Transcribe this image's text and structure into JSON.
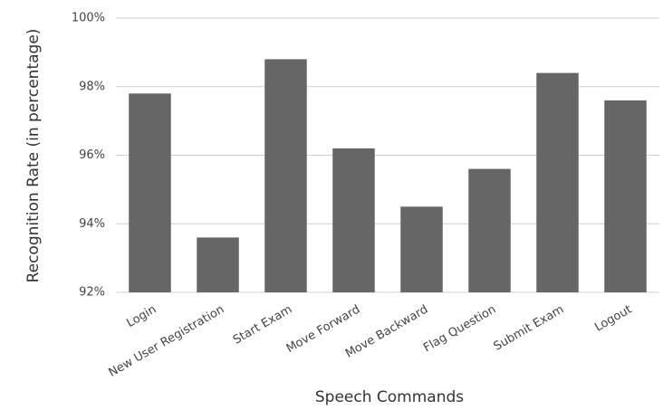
{
  "chart_data": {
    "type": "bar",
    "x_label": "Speech Commands",
    "y_label": "Recognition Rate (in percentage)",
    "categories": [
      "Login",
      "New User Registration",
      "Start Exam",
      "Move Forward",
      "Move Backward",
      "Flag Question",
      "Submit Exam",
      "Logout"
    ],
    "values": [
      97.8,
      93.6,
      98.8,
      96.2,
      94.5,
      95.6,
      98.4,
      97.6
    ],
    "color": "#666666",
    "ylim": [
      92,
      100
    ],
    "yticks": [
      {
        "value": 92,
        "label": "92%"
      },
      {
        "value": 94,
        "label": "94%"
      },
      {
        "value": 96,
        "label": "96%"
      },
      {
        "value": 98,
        "label": "98%"
      },
      {
        "value": 100,
        "label": "100%"
      }
    ],
    "grid": true
  }
}
